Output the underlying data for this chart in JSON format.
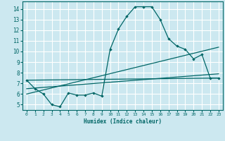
{
  "xlabel": "Humidex (Indice chaleur)",
  "bg_color": "#cce8f0",
  "line_color": "#006666",
  "grid_color": "#ffffff",
  "xlim": [
    -0.5,
    23.5
  ],
  "ylim": [
    4.5,
    14.7
  ],
  "yticks": [
    5,
    6,
    7,
    8,
    9,
    10,
    11,
    12,
    13,
    14
  ],
  "xticks": [
    0,
    1,
    2,
    3,
    4,
    5,
    6,
    7,
    8,
    9,
    10,
    11,
    12,
    13,
    14,
    15,
    16,
    17,
    18,
    19,
    20,
    21,
    22,
    23
  ],
  "series1_x": [
    0,
    1,
    2,
    3,
    4,
    5,
    6,
    7,
    8,
    9,
    10,
    11,
    12,
    13,
    14,
    15,
    16,
    17,
    18,
    19,
    20,
    21,
    22,
    23
  ],
  "series1_y": [
    7.3,
    6.5,
    6.0,
    5.0,
    4.8,
    6.1,
    5.9,
    5.9,
    6.1,
    5.8,
    10.2,
    12.1,
    13.3,
    14.2,
    14.2,
    14.2,
    13.0,
    11.2,
    10.5,
    10.2,
    9.3,
    9.7,
    7.5,
    7.5
  ],
  "line2_x": [
    0,
    23
  ],
  "line2_y": [
    7.3,
    7.5
  ],
  "line3_x": [
    0,
    23
  ],
  "line3_y": [
    6.5,
    7.9
  ],
  "line4_x": [
    0,
    23
  ],
  "line4_y": [
    6.0,
    10.4
  ]
}
